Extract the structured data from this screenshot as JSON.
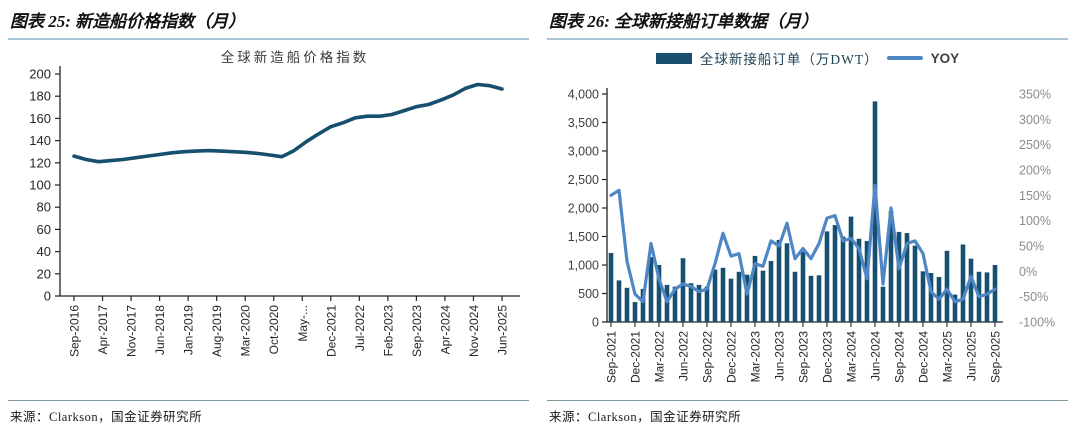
{
  "colors": {
    "primary_dark": "#174f6e",
    "yoy_blue": "#4f86c4",
    "title_underline": "#a8c6d8",
    "source_divider": "#8096a2",
    "axis_text": "#262626",
    "left_axis_text": "#404040",
    "right_axis_text": "#8c8c8c",
    "plot_title_text": "#3a3a3a",
    "axis_line": "#222222"
  },
  "figures": [
    {
      "title": "图表 25: 新造船价格指数（月）",
      "source": "来源：Clarkson，国金证券研究所"
    },
    {
      "title": "图表 26: 全球新接船订单数据（月）",
      "source": "来源：Clarkson，国金证券研究所",
      "legend": [
        {
          "label": "全球新接船订单（万DWT）",
          "type": "bar",
          "color": "#174f6e"
        },
        {
          "label": "YOY",
          "type": "line",
          "color": "#4f86c4"
        }
      ]
    }
  ],
  "chart_data": [
    {
      "type": "line",
      "title": "全球新造船价格指数",
      "x_start": "Sep-2016",
      "x_end": "Jun-2025",
      "x_tick_labels": [
        "Sep-2016",
        "Apr-2017",
        "Nov-2017",
        "Jun-2018",
        "Jan-2019",
        "Aug-2019",
        "Mar-2020",
        "Oct-2020",
        "May-...",
        "Dec-2021",
        "Jul-2022",
        "Feb-2023",
        "Sep-2023",
        "Apr-2024",
        "Nov-2024",
        "Jun-2025"
      ],
      "x_tick_interval_months": 7,
      "series_interval_months": 3,
      "total_months": 106,
      "values": [
        126,
        123,
        121,
        122,
        123,
        124.5,
        126,
        127.5,
        129,
        130,
        130.5,
        131,
        130.5,
        130,
        129.5,
        128.5,
        127,
        125.5,
        131,
        139,
        146,
        152.5,
        156,
        160.5,
        162,
        162,
        163.5,
        167,
        170.5,
        172.5,
        176.5,
        181,
        187,
        190.5,
        189.5,
        186.5
      ],
      "ylim": [
        0,
        200
      ],
      "y_tick_step": 20,
      "line_color": "#174f6e",
      "grid": false,
      "legend_position": "none"
    },
    {
      "type": "bar",
      "title": "全球新接船订单数据（月）",
      "categories": [
        "Sep-2021",
        "Oct-2021",
        "Nov-2021",
        "Dec-2021",
        "Jan-2022",
        "Feb-2022",
        "Mar-2022",
        "Apr-2022",
        "May-2022",
        "Jun-2022",
        "Jul-2022",
        "Aug-2022",
        "Sep-2022",
        "Oct-2022",
        "Nov-2022",
        "Dec-2022",
        "Jan-2023",
        "Feb-2023",
        "Mar-2023",
        "Apr-2023",
        "May-2023",
        "Jun-2023",
        "Jul-2023",
        "Aug-2023",
        "Sep-2023",
        "Oct-2023",
        "Nov-2023",
        "Dec-2023",
        "Jan-2024",
        "Feb-2024",
        "Mar-2024",
        "Apr-2024",
        "May-2024",
        "Jun-2024",
        "Jul-2024",
        "Aug-2024",
        "Sep-2024",
        "Oct-2024",
        "Nov-2024",
        "Dec-2024",
        "Jan-2025",
        "Feb-2025",
        "Mar-2025",
        "Apr-2025",
        "May-2025",
        "Jun-2025",
        "Jul-2025",
        "Aug-2025",
        "Sep-2025"
      ],
      "x_tick_labels": [
        "Sep-2021",
        "Dec-2021",
        "Mar-2022",
        "Jun-2022",
        "Sep-2022",
        "Dec-2022",
        "Mar-2023",
        "Jun-2023",
        "Sep-2023",
        "Dec-2023",
        "Mar-2024",
        "Jun-2024",
        "Sep-2024",
        "Dec-2024",
        "Mar-2025",
        "Jun-2025",
        "Sep-2025"
      ],
      "x_tick_every_n_months": 3,
      "series": [
        {
          "name": "全球新接船订单（万DWT）",
          "type": "bar",
          "axis": "left",
          "color": "#174f6e",
          "values": [
            1210,
            730,
            600,
            350,
            580,
            1140,
            1000,
            650,
            620,
            1120,
            680,
            650,
            620,
            920,
            950,
            760,
            880,
            830,
            1160,
            900,
            1070,
            1440,
            1380,
            880,
            1230,
            810,
            820,
            1590,
            1700,
            1500,
            1850,
            1460,
            1420,
            3870,
            620,
            1950,
            1580,
            1560,
            1340,
            890,
            860,
            790,
            1250,
            480,
            1360,
            1110,
            880,
            870,
            1000
          ]
        },
        {
          "name": "YOY",
          "type": "line",
          "axis": "right",
          "color": "#4f86c4",
          "values_pct": [
            150,
            160,
            20,
            -45,
            -60,
            55,
            -15,
            -60,
            -35,
            -25,
            -30,
            -40,
            -35,
            15,
            75,
            30,
            35,
            -45,
            15,
            10,
            60,
            50,
            95,
            25,
            45,
            25,
            55,
            105,
            110,
            60,
            65,
            45,
            -15,
            170,
            -25,
            125,
            5,
            55,
            60,
            35,
            -40,
            -55,
            -35,
            -60,
            -55,
            -10,
            -50,
            -45,
            -35
          ]
        }
      ],
      "left_ylim": [
        0,
        4000
      ],
      "left_y_tick_step": 500,
      "right_ylim_pct": [
        -100,
        350
      ],
      "right_y_tick_step_pct": 50,
      "grid": false,
      "legend_position": "top"
    }
  ]
}
